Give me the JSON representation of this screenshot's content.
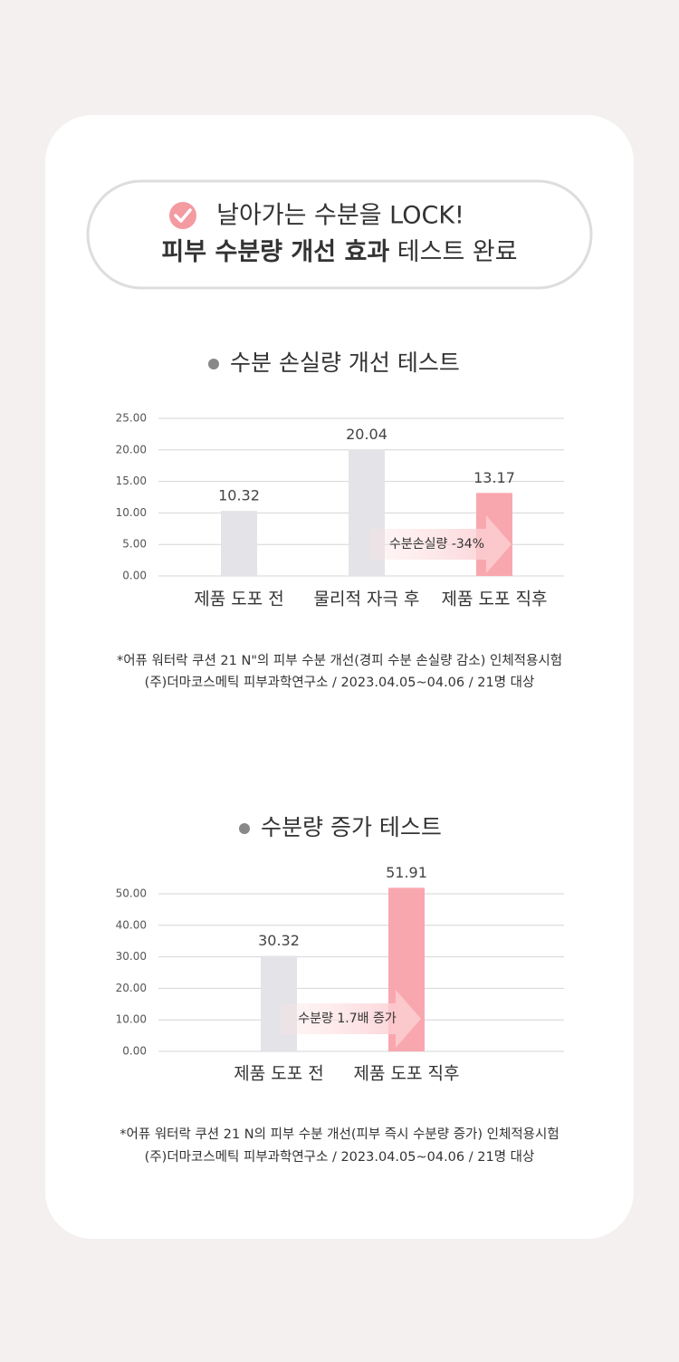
{
  "header": {
    "line1": "날아가는 수분을 LOCK!",
    "line2_bold": "피부 수분량 개선 효과",
    "line2_rest": "테스트 완료"
  },
  "chart_data": [
    {
      "type": "bar",
      "title": "수분 손실량 개선 테스트",
      "categories": [
        "제품 도포 전",
        "물리적 자극 후",
        "제품 도포 직후"
      ],
      "values": [
        10.32,
        20.04,
        13.17
      ],
      "colors": [
        "#e4e3e7",
        "#e4e3e7",
        "#f9a7ae"
      ],
      "ylim": [
        0,
        25
      ],
      "yticks": [
        {
          "value": 0,
          "label": "0.00"
        },
        {
          "value": 5,
          "label": "5.00"
        },
        {
          "value": 10,
          "label": "10.00"
        },
        {
          "value": 15,
          "label": "15.00"
        },
        {
          "value": 20,
          "label": "20.00"
        },
        {
          "value": 25,
          "label": "25.00"
        }
      ],
      "grid": true,
      "annotation": "수분손실량 -34%",
      "notes": [
        "*어퓨 워터락 쿠션 21 N\"의 피부 수분 개선(경피 수분 손실량 감소) 인체적용시험",
        "(주)더마코스메틱 피부과학연구소 / 2023.04.05~04.06 / 21명 대상"
      ]
    },
    {
      "type": "bar",
      "title": "수분량 증가 테스트",
      "categories": [
        "제품 도포 전",
        "제품 도포 직후"
      ],
      "values": [
        30.32,
        51.91
      ],
      "colors": [
        "#e4e3e7",
        "#f9a7ae"
      ],
      "ylim": [
        0,
        50
      ],
      "yticks": [
        {
          "value": 0,
          "label": "0.00"
        },
        {
          "value": 10,
          "label": "10.00"
        },
        {
          "value": 20,
          "label": "20.00"
        },
        {
          "value": 30,
          "label": "30.00"
        },
        {
          "value": 40,
          "label": "40.00"
        },
        {
          "value": 50,
          "label": "50.00"
        }
      ],
      "grid": true,
      "annotation": "수분량 1.7배 증가",
      "notes": [
        "*어퓨 워터락 쿠션 21 N의 피부 수분 개선(피부 즉시 수분량 증가) 인체적용시험",
        "(주)더마코스메틱 피부과학연구소 / 2023.04.05~04.06 / 21명 대상"
      ]
    }
  ]
}
